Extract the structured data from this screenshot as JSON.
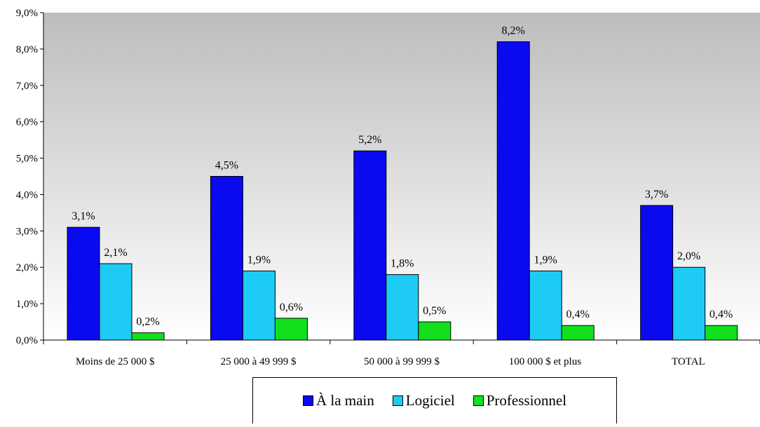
{
  "chart_data": {
    "type": "bar",
    "categories": [
      "Moins de 25 000 $",
      "25 000 à 49 999 $",
      "50 000 à 99 999 $",
      "100 000 $ et plus",
      "TOTAL"
    ],
    "series": [
      {
        "name": "À la main",
        "color": "#0a0af0",
        "values": [
          3.1,
          4.5,
          5.2,
          8.2,
          3.7
        ],
        "labels": [
          "3,1%",
          "4,5%",
          "5,2%",
          "8,2%",
          "3,7%"
        ]
      },
      {
        "name": "Logiciel",
        "color": "#1ecbf5",
        "values": [
          2.1,
          1.9,
          1.8,
          1.9,
          2.0
        ],
        "labels": [
          "2,1%",
          "1,9%",
          "1,8%",
          "1,9%",
          "2,0%"
        ]
      },
      {
        "name": "Professionnel",
        "color": "#12e01c",
        "values": [
          0.2,
          0.6,
          0.5,
          0.4,
          0.4
        ],
        "labels": [
          "0,2%",
          "0,6%",
          "0,5%",
          "0,4%",
          "0,4%"
        ]
      }
    ],
    "ylim": [
      0,
      9
    ],
    "yticks": [
      "0,0%",
      "1,0%",
      "2,0%",
      "3,0%",
      "4,0%",
      "5,0%",
      "6,0%",
      "7,0%",
      "8,0%",
      "9,0%"
    ],
    "title": "",
    "xlabel": "",
    "ylabel": "",
    "grid": false,
    "background": "gradient grey",
    "legend_position": "bottom"
  }
}
